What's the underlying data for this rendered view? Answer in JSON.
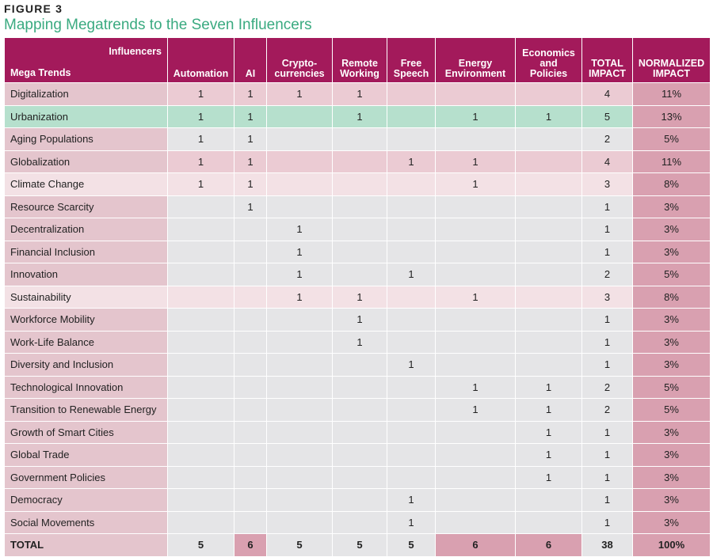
{
  "figure_label": "FIGURE 3",
  "title": "Mapping Megatrends to the Seven Influencers",
  "header": {
    "corner_top": "Influencers",
    "corner_bottom": "Mega Trends",
    "columns": [
      [
        "Automation"
      ],
      [
        "AI"
      ],
      [
        "Crypto-",
        "currencies"
      ],
      [
        "Remote",
        "Working"
      ],
      [
        "Free",
        "Speech"
      ],
      [
        "Energy",
        "Environment"
      ],
      [
        "Economics",
        "and",
        "Policies"
      ],
      [
        "TOTAL",
        "IMPACT"
      ],
      [
        "NORMALIZED",
        "IMPACT"
      ]
    ]
  },
  "rows": [
    {
      "name": "Digitalization",
      "cells": [
        "1",
        "1",
        "1",
        "1",
        "",
        "",
        "",
        "4",
        "11%"
      ],
      "shade": "pink"
    },
    {
      "name": "Urbanization",
      "cells": [
        "1",
        "1",
        "",
        "1",
        "",
        "1",
        "1",
        "5",
        "13%"
      ],
      "shade": "green"
    },
    {
      "name": "Aging Populations",
      "cells": [
        "1",
        "1",
        "",
        "",
        "",
        "",
        "",
        "2",
        "5%"
      ],
      "shade": "default"
    },
    {
      "name": "Globalization",
      "cells": [
        "1",
        "1",
        "",
        "",
        "1",
        "1",
        "",
        "4",
        "11%"
      ],
      "shade": "pink"
    },
    {
      "name": "Climate Change",
      "cells": [
        "1",
        "1",
        "",
        "",
        "",
        "1",
        "",
        "3",
        "8%"
      ],
      "shade": "light"
    },
    {
      "name": "Resource Scarcity",
      "cells": [
        "",
        "1",
        "",
        "",
        "",
        "",
        "",
        "1",
        "3%"
      ],
      "shade": "default"
    },
    {
      "name": "Decentralization",
      "cells": [
        "",
        "",
        "1",
        "",
        "",
        "",
        "",
        "1",
        "3%"
      ],
      "shade": "default"
    },
    {
      "name": "Financial Inclusion",
      "cells": [
        "",
        "",
        "1",
        "",
        "",
        "",
        "",
        "1",
        "3%"
      ],
      "shade": "default"
    },
    {
      "name": "Innovation",
      "cells": [
        "",
        "",
        "1",
        "",
        "1",
        "",
        "",
        "2",
        "5%"
      ],
      "shade": "default"
    },
    {
      "name": "Sustainability",
      "cells": [
        "",
        "",
        "1",
        "1",
        "",
        "1",
        "",
        "3",
        "8%"
      ],
      "shade": "light"
    },
    {
      "name": "Workforce Mobility",
      "cells": [
        "",
        "",
        "",
        "1",
        "",
        "",
        "",
        "1",
        "3%"
      ],
      "shade": "default"
    },
    {
      "name": "Work-Life Balance",
      "cells": [
        "",
        "",
        "",
        "1",
        "",
        "",
        "",
        "1",
        "3%"
      ],
      "shade": "default"
    },
    {
      "name": "Diversity and Inclusion",
      "cells": [
        "",
        "",
        "",
        "",
        "1",
        "",
        "",
        "1",
        "3%"
      ],
      "shade": "default"
    },
    {
      "name": "Technological Innovation",
      "cells": [
        "",
        "",
        "",
        "",
        "",
        "1",
        "1",
        "2",
        "5%"
      ],
      "shade": "default"
    },
    {
      "name": "Transition to Renewable Energy",
      "cells": [
        "",
        "",
        "",
        "",
        "",
        "1",
        "1",
        "2",
        "5%"
      ],
      "shade": "default"
    },
    {
      "name": "Growth of Smart Cities",
      "cells": [
        "",
        "",
        "",
        "",
        "",
        "",
        "1",
        "1",
        "3%"
      ],
      "shade": "default"
    },
    {
      "name": "Global Trade",
      "cells": [
        "",
        "",
        "",
        "",
        "",
        "",
        "1",
        "1",
        "3%"
      ],
      "shade": "default"
    },
    {
      "name": "Government Policies",
      "cells": [
        "",
        "",
        "",
        "",
        "",
        "",
        "1",
        "1",
        "3%"
      ],
      "shade": "default"
    },
    {
      "name": "Democracy",
      "cells": [
        "",
        "",
        "",
        "",
        "1",
        "",
        "",
        "1",
        "3%"
      ],
      "shade": "default"
    },
    {
      "name": "Social Movements",
      "cells": [
        "",
        "",
        "",
        "",
        "1",
        "",
        "",
        "1",
        "3%"
      ],
      "shade": "default"
    }
  ],
  "total": {
    "name": "TOTAL",
    "cells": [
      "5",
      "6",
      "5",
      "5",
      "5",
      "6",
      "6",
      "38",
      "100%"
    ],
    "highlight": [
      1,
      5,
      6,
      8
    ]
  },
  "colors": {
    "header": "#a31a5b",
    "title": "#3aaa80",
    "row_pink": "#ebcbd3",
    "row_light": "#f3e1e5",
    "row_green": "#b6e0cd",
    "row_default": "#e5e5e7",
    "normalized": "#d9a0b0"
  }
}
